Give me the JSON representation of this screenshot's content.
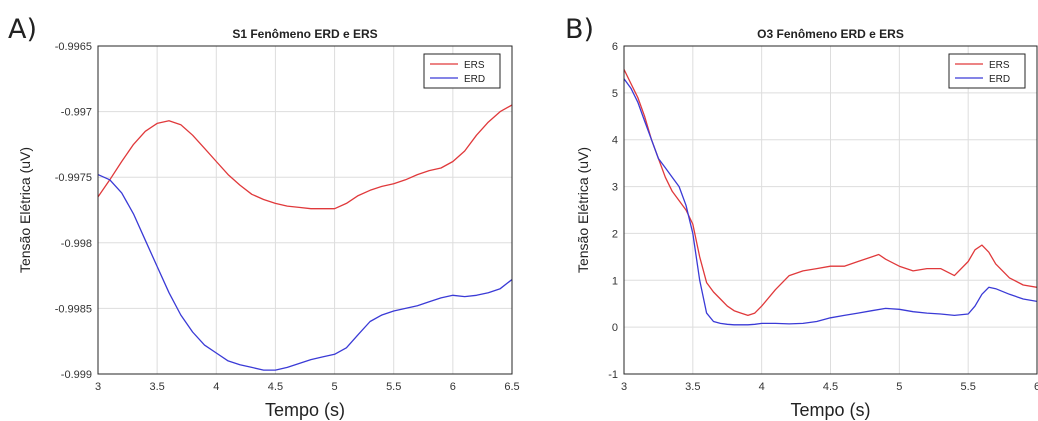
{
  "chart_data": [
    {
      "panel": "A)",
      "type": "line",
      "title": "S1 Fenômeno ERD e ERS",
      "xlabel": "Tempo (s)",
      "ylabel": "Tensão Elétrica (uV)",
      "xlim": [
        3,
        6.5
      ],
      "ylim": [
        -0.999,
        -0.9965
      ],
      "xticks": [
        "3",
        "3.5",
        "4",
        "4.5",
        "5",
        "5.5",
        "6",
        "6.5"
      ],
      "yticks": [
        "-0.9965",
        "-0.997",
        "-0.9975",
        "-0.998",
        "-0.9985",
        "-0.999"
      ],
      "grid": true,
      "legend_position": "top-right",
      "series": [
        {
          "name": "ERS",
          "color": "#e0393b",
          "x": [
            3.0,
            3.1,
            3.2,
            3.3,
            3.4,
            3.5,
            3.6,
            3.7,
            3.8,
            3.9,
            4.0,
            4.1,
            4.2,
            4.3,
            4.4,
            4.5,
            4.6,
            4.7,
            4.8,
            4.9,
            5.0,
            5.1,
            5.2,
            5.3,
            5.4,
            5.5,
            5.6,
            5.7,
            5.8,
            5.9,
            6.0,
            6.1,
            6.2,
            6.3,
            6.4,
            6.5
          ],
          "y": [
            -0.99765,
            -0.99752,
            -0.99738,
            -0.99725,
            -0.99715,
            -0.99709,
            -0.99707,
            -0.9971,
            -0.99718,
            -0.99728,
            -0.99738,
            -0.99748,
            -0.99756,
            -0.99763,
            -0.99767,
            -0.9977,
            -0.99772,
            -0.99773,
            -0.99774,
            -0.99774,
            -0.99774,
            -0.9977,
            -0.99764,
            -0.9976,
            -0.99757,
            -0.99755,
            -0.99752,
            -0.99748,
            -0.99745,
            -0.99743,
            -0.99738,
            -0.9973,
            -0.99718,
            -0.99708,
            -0.997,
            -0.99695
          ]
        },
        {
          "name": "ERD",
          "color": "#3a3ad6",
          "x": [
            3.0,
            3.1,
            3.2,
            3.3,
            3.4,
            3.5,
            3.6,
            3.7,
            3.8,
            3.9,
            4.0,
            4.1,
            4.2,
            4.3,
            4.4,
            4.5,
            4.6,
            4.7,
            4.8,
            4.9,
            5.0,
            5.1,
            5.2,
            5.3,
            5.4,
            5.5,
            5.6,
            5.7,
            5.8,
            5.9,
            6.0,
            6.1,
            6.2,
            6.3,
            6.4,
            6.5
          ],
          "y": [
            -0.99748,
            -0.99752,
            -0.99762,
            -0.99778,
            -0.99798,
            -0.99818,
            -0.99838,
            -0.99855,
            -0.99868,
            -0.99878,
            -0.99884,
            -0.9989,
            -0.99893,
            -0.99895,
            -0.99897,
            -0.99897,
            -0.99895,
            -0.99892,
            -0.99889,
            -0.99887,
            -0.99885,
            -0.9988,
            -0.9987,
            -0.9986,
            -0.99855,
            -0.99852,
            -0.9985,
            -0.99848,
            -0.99845,
            -0.99842,
            -0.9984,
            -0.99841,
            -0.9984,
            -0.99838,
            -0.99835,
            -0.99828
          ]
        }
      ]
    },
    {
      "panel": "B)",
      "type": "line",
      "title": "O3 Fenômeno ERD e ERS",
      "xlabel": "Tempo (s)",
      "ylabel": "Tensão Elétrica (uV)",
      "xlim": [
        3,
        6
      ],
      "ylim": [
        -1,
        6
      ],
      "xticks": [
        "3",
        "3.5",
        "4",
        "4.5",
        "5",
        "5.5",
        "6"
      ],
      "yticks": [
        "6",
        "5",
        "4",
        "3",
        "2",
        "1",
        "0",
        "-1"
      ],
      "grid": true,
      "legend_position": "top-right",
      "series": [
        {
          "name": "ERS",
          "color": "#e0393b",
          "x": [
            3.0,
            3.05,
            3.1,
            3.15,
            3.2,
            3.25,
            3.3,
            3.35,
            3.4,
            3.45,
            3.5,
            3.55,
            3.6,
            3.65,
            3.7,
            3.75,
            3.8,
            3.85,
            3.9,
            3.95,
            4.0,
            4.1,
            4.2,
            4.3,
            4.4,
            4.5,
            4.6,
            4.7,
            4.8,
            4.85,
            4.9,
            5.0,
            5.1,
            5.2,
            5.3,
            5.4,
            5.5,
            5.55,
            5.6,
            5.65,
            5.7,
            5.8,
            5.9,
            6.0
          ],
          "y": [
            5.5,
            5.2,
            4.9,
            4.5,
            4.0,
            3.6,
            3.2,
            2.9,
            2.7,
            2.5,
            2.2,
            1.5,
            0.95,
            0.75,
            0.6,
            0.45,
            0.35,
            0.3,
            0.25,
            0.3,
            0.45,
            0.8,
            1.1,
            1.2,
            1.25,
            1.3,
            1.3,
            1.4,
            1.5,
            1.55,
            1.45,
            1.3,
            1.2,
            1.25,
            1.25,
            1.1,
            1.4,
            1.65,
            1.75,
            1.6,
            1.35,
            1.05,
            0.9,
            0.85
          ]
        },
        {
          "name": "ERD",
          "color": "#3a3ad6",
          "x": [
            3.0,
            3.05,
            3.1,
            3.15,
            3.2,
            3.25,
            3.3,
            3.35,
            3.4,
            3.45,
            3.5,
            3.55,
            3.6,
            3.65,
            3.7,
            3.75,
            3.8,
            3.85,
            3.9,
            3.95,
            4.0,
            4.1,
            4.2,
            4.3,
            4.4,
            4.5,
            4.6,
            4.7,
            4.8,
            4.9,
            5.0,
            5.1,
            5.2,
            5.3,
            5.4,
            5.5,
            5.55,
            5.6,
            5.65,
            5.7,
            5.8,
            5.9,
            6.0
          ],
          "y": [
            5.3,
            5.1,
            4.8,
            4.4,
            4.0,
            3.6,
            3.4,
            3.2,
            3.0,
            2.6,
            2.0,
            1.0,
            0.3,
            0.12,
            0.08,
            0.06,
            0.05,
            0.05,
            0.05,
            0.06,
            0.08,
            0.08,
            0.07,
            0.08,
            0.12,
            0.2,
            0.25,
            0.3,
            0.35,
            0.4,
            0.38,
            0.33,
            0.3,
            0.28,
            0.25,
            0.28,
            0.45,
            0.7,
            0.85,
            0.82,
            0.7,
            0.6,
            0.55
          ]
        }
      ]
    }
  ]
}
